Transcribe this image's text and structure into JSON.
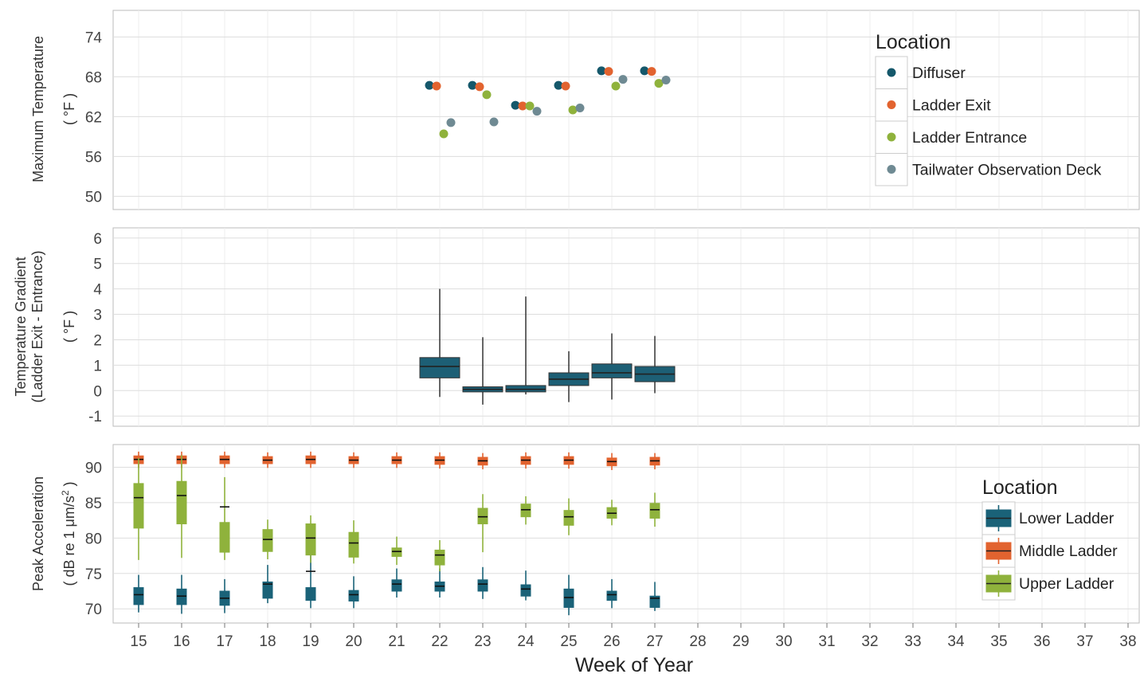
{
  "colors": {
    "diffuser": "#15586b",
    "ladder_exit": "#e2632f",
    "ladder_entrance": "#8fb23c",
    "tailwater": "#6f8a93",
    "lower_ladder": "#1a6278",
    "middle_ladder": "#e2632f",
    "upper_ladder": "#8fb23c",
    "gradient_box": "#1d5f75",
    "grid": "#dddddd",
    "panel_border": "#bbbbbb"
  },
  "chart_data": [
    {
      "type": "scatter",
      "ylabel": "Maximum Temperature",
      "ylabel_unit": "( °F )",
      "ylim": [
        48,
        78
      ],
      "y_ticks": [
        50,
        56,
        62,
        68,
        74
      ],
      "legend": {
        "title": "Location",
        "placement": "top-right",
        "entries": [
          "Diffuser",
          "Ladder Exit",
          "Ladder Entrance",
          "Tailwater Observation Deck"
        ]
      },
      "series": [
        {
          "name": "Diffuser",
          "x": [
            22,
            23,
            24,
            25,
            26,
            27
          ],
          "values": [
            66.7,
            66.7,
            63.7,
            66.7,
            68.9,
            68.9
          ]
        },
        {
          "name": "Ladder Exit",
          "x": [
            22,
            23,
            24,
            25,
            26,
            27
          ],
          "values": [
            66.6,
            66.5,
            63.6,
            66.6,
            68.8,
            68.8
          ]
        },
        {
          "name": "Ladder Entrance",
          "x": [
            22,
            23,
            24,
            25,
            26,
            27
          ],
          "values": [
            59.4,
            65.3,
            63.6,
            63.0,
            66.6,
            67.0
          ]
        },
        {
          "name": "Tailwater Observation Deck",
          "x": [
            22,
            23,
            24,
            25,
            26,
            27
          ],
          "values": [
            61.1,
            61.2,
            62.8,
            63.3,
            67.6,
            67.5
          ]
        }
      ]
    },
    {
      "type": "box",
      "ylabel": "Temperature Gradient",
      "ylabel_sub": "(Ladder Exit - Entrance)",
      "ylabel_unit": "( °F )",
      "ylim": [
        -1.4,
        6.4
      ],
      "y_ticks": [
        -1,
        0,
        1,
        2,
        3,
        4,
        5,
        6
      ],
      "series": [
        {
          "name": "Temperature Gradient",
          "x": [
            22,
            23,
            24,
            25,
            26,
            27
          ],
          "min": [
            -0.25,
            -0.55,
            -0.15,
            -0.45,
            -0.35,
            -0.1
          ],
          "q1": [
            0.5,
            -0.05,
            -0.05,
            0.2,
            0.5,
            0.35
          ],
          "median": [
            0.95,
            0.05,
            0.05,
            0.45,
            0.7,
            0.65
          ],
          "q3": [
            1.3,
            0.15,
            0.2,
            0.7,
            1.05,
            0.95
          ],
          "max": [
            4.0,
            2.1,
            3.7,
            1.55,
            2.25,
            2.15
          ]
        }
      ]
    },
    {
      "type": "box",
      "ylabel": "Peak Acceleration",
      "ylabel_unit_prefix": "( dB re 1 μm/s",
      "ylabel_unit_sup": "2",
      "ylabel_unit_suffix": " )",
      "ylim": [
        68,
        93.2
      ],
      "y_ticks": [
        70,
        75,
        80,
        85,
        90
      ],
      "legend": {
        "title": "Location",
        "placement": "bottom-right",
        "entries": [
          "Lower Ladder",
          "Middle Ladder",
          "Upper Ladder"
        ]
      },
      "series": [
        {
          "name": "Lower Ladder",
          "x": [
            15,
            16,
            17,
            18,
            19,
            20,
            21,
            22,
            23,
            24,
            25,
            26,
            27
          ],
          "min": [
            69.5,
            69.3,
            69.4,
            70.8,
            70.1,
            70.1,
            71.6,
            71.6,
            71.4,
            71.2,
            69.1,
            70.1,
            69.7
          ],
          "q1": [
            70.6,
            70.6,
            70.5,
            71.5,
            71.2,
            71.1,
            72.5,
            72.5,
            72.5,
            71.8,
            70.2,
            71.2,
            70.2
          ],
          "median": [
            72.0,
            71.8,
            71.5,
            73.5,
            75.3,
            72.0,
            73.5,
            73.2,
            73.5,
            72.8,
            71.6,
            72.0,
            71.5
          ],
          "q3": [
            73.0,
            72.8,
            72.5,
            73.8,
            73.0,
            72.6,
            74.1,
            73.8,
            74.1,
            73.4,
            72.8,
            72.5,
            71.8
          ],
          "max": [
            74.8,
            74.8,
            74.2,
            76.2,
            77.6,
            74.6,
            75.7,
            75.7,
            75.9,
            75.4,
            74.8,
            74.2,
            73.8
          ]
        },
        {
          "name": "Middle Ladder",
          "x": [
            15,
            16,
            17,
            18,
            19,
            20,
            21,
            22,
            23,
            24,
            25,
            26,
            27
          ],
          "min": [
            89.9,
            89.9,
            89.9,
            89.9,
            89.9,
            89.9,
            89.9,
            89.8,
            89.7,
            89.8,
            89.8,
            89.6,
            89.7
          ],
          "q1": [
            90.5,
            90.5,
            90.5,
            90.5,
            90.5,
            90.5,
            90.5,
            90.4,
            90.3,
            90.4,
            90.4,
            90.2,
            90.3
          ],
          "median": [
            91.1,
            91.1,
            91.1,
            91.0,
            91.1,
            91.0,
            91.0,
            91.0,
            90.9,
            91.0,
            91.0,
            90.8,
            90.9
          ],
          "q3": [
            91.6,
            91.6,
            91.6,
            91.5,
            91.6,
            91.5,
            91.5,
            91.5,
            91.4,
            91.5,
            91.5,
            91.3,
            91.4
          ],
          "max": [
            92.2,
            92.2,
            92.2,
            92.1,
            92.2,
            92.1,
            92.1,
            92.1,
            92.0,
            92.1,
            92.1,
            92.0,
            92.0
          ]
        },
        {
          "name": "Upper Ladder",
          "x": [
            15,
            16,
            17,
            18,
            19,
            20,
            21,
            22,
            23,
            24,
            25,
            26,
            27
          ],
          "min": [
            76.9,
            77.2,
            76.9,
            77.0,
            76.5,
            76.4,
            76.2,
            75.3,
            78.0,
            81.9,
            80.4,
            81.8,
            81.6
          ],
          "q1": [
            81.4,
            82.0,
            78.0,
            78.1,
            77.6,
            77.3,
            77.4,
            76.2,
            82.0,
            83.0,
            81.8,
            82.8,
            82.8
          ],
          "median": [
            85.7,
            86.0,
            84.4,
            79.8,
            80.0,
            79.3,
            78.1,
            77.6,
            83.0,
            84.0,
            83.0,
            83.5,
            84.0
          ],
          "q3": [
            87.7,
            88.0,
            82.2,
            81.2,
            82.0,
            80.8,
            78.6,
            78.3,
            84.2,
            84.8,
            83.9,
            84.3,
            84.9
          ],
          "max": [
            91.3,
            91.7,
            88.6,
            82.6,
            83.2,
            82.5,
            80.2,
            79.7,
            86.2,
            85.9,
            85.6,
            85.4,
            86.4
          ]
        }
      ]
    }
  ],
  "x_axis": {
    "label": "Week of Year",
    "ticks": [
      15,
      16,
      17,
      18,
      19,
      20,
      21,
      22,
      23,
      24,
      25,
      26,
      27,
      28,
      29,
      30,
      31,
      32,
      33,
      34,
      35,
      36,
      37,
      38
    ]
  }
}
